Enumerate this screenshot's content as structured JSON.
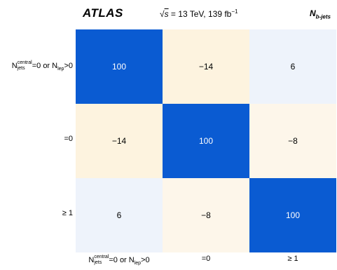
{
  "header": {
    "experiment": "ATLAS",
    "sqrt_s": "s",
    "energy_text": " = 13 TeV, 139 fb",
    "lumi_exponent": "−1",
    "variable_main": "N",
    "variable_sub": "b-jets"
  },
  "chart_data": {
    "type": "heatmap",
    "title": "",
    "row_labels": [
      {
        "pre": "N",
        "sup": "central",
        "sub": "jets",
        "mid": "=0 or N",
        "sub2": "lep",
        "post": ">0"
      },
      {
        "pre": "",
        "sup": "",
        "sub": "",
        "mid": "=0",
        "sub2": "",
        "post": ""
      },
      {
        "pre": "",
        "sup": "",
        "sub": "",
        "mid": "≥ 1",
        "sub2": "",
        "post": ""
      }
    ],
    "col_labels": [
      {
        "pre": "N",
        "sup": "central",
        "sub": "jets",
        "mid": "=0 or N",
        "sub2": "lep",
        "post": ">0"
      },
      {
        "pre": "",
        "sup": "",
        "sub": "",
        "mid": "=0",
        "sub2": "",
        "post": ""
      },
      {
        "pre": "",
        "sup": "",
        "sub": "",
        "mid": "≥ 1",
        "sub2": "",
        "post": ""
      }
    ],
    "values": [
      [
        100,
        -14,
        6
      ],
      [
        -14,
        100,
        -8
      ],
      [
        6,
        -8,
        100
      ]
    ],
    "value_labels": [
      [
        "100",
        "−14",
        "6"
      ],
      [
        "−14",
        "100",
        "−8"
      ],
      [
        "6",
        "−8",
        "100"
      ]
    ],
    "color_scale": {
      "min": -100,
      "max": 100,
      "positive": "#0055cc",
      "negative": "#f2c36b",
      "zero": "#ffffff"
    },
    "colors": {
      "diag": "#0a5bd2",
      "neg14": "#fdf3df",
      "pos6": "#eef3fb",
      "neg8": "#fdf6ea"
    }
  }
}
